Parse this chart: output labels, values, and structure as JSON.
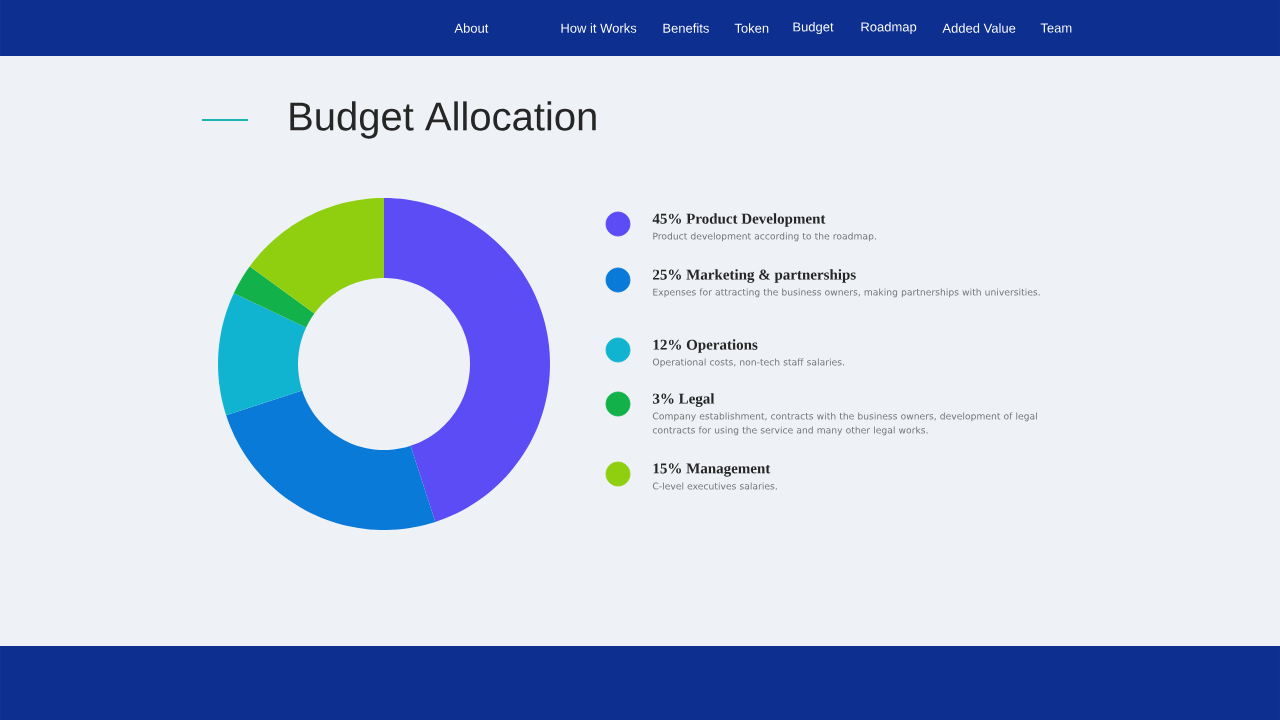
{
  "chart_data": {
    "type": "donut",
    "title": "Budget Allocation",
    "categories": [
      "45% Product Development",
      "25% Marketing & partnerships",
      "12% Operations",
      "3% Legal",
      "15% Management"
    ],
    "values": [
      45,
      25,
      12,
      3,
      15
    ],
    "colors": [
      "#5b4cf5",
      "#0a7ad8",
      "#11b4d0",
      "#13b14a",
      "#8fcf0f"
    ],
    "legend": "right",
    "annotations": [
      "Product development according to the roadmap.",
      "Expenses for attracting the business owners, making partnerships with universities.",
      "Operational costs, non-tech staff salaries.",
      "Company establishment, contracts with the business owners, development of legal contracts for using the service and many other legal works.",
      "C-level executives salaries.",
      "About",
      "How it Works",
      "Benefits",
      "Token",
      "Budget",
      "Roadmap",
      "Added Value",
      "Team"
    ]
  }
}
